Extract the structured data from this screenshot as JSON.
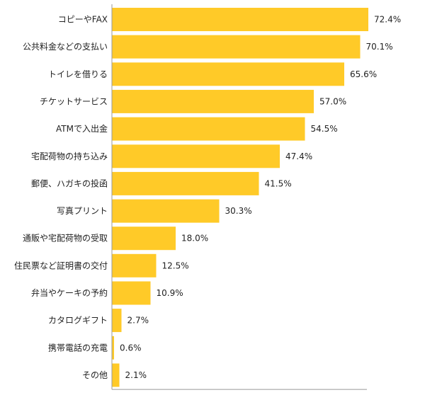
{
  "chart_data": {
    "type": "bar",
    "orientation": "horizontal",
    "title": "",
    "xlabel": "",
    "ylabel": "",
    "categories": [
      "コピーやFAX",
      "公共料金などの支払い",
      "トイレを借りる",
      "チケットサービス",
      "ATMで入出金",
      "宅配荷物の持ち込み",
      "郵便、ハガキの投函",
      "写真プリント",
      "通販や宅配荷物の受取",
      "住民票など証明書の交付",
      "弁当やケーキの予約",
      "カタログギフト",
      "携帯電話の充電",
      "その他"
    ],
    "values": [
      72.4,
      70.1,
      65.6,
      57.0,
      54.5,
      47.4,
      41.5,
      30.3,
      18.0,
      12.5,
      10.9,
      2.7,
      0.6,
      2.1
    ],
    "value_labels": [
      "72.4%",
      "70.1%",
      "65.6%",
      "57.0%",
      "54.5%",
      "47.4%",
      "41.5%",
      "30.3%",
      "18.0%",
      "12.5%",
      "10.9%",
      "2.7%",
      "0.6%",
      "2.1%"
    ],
    "xlim": [
      0,
      100
    ],
    "grid": false,
    "legend": "none",
    "bar_color": "#FFCA28",
    "axis_color": "#999999"
  }
}
